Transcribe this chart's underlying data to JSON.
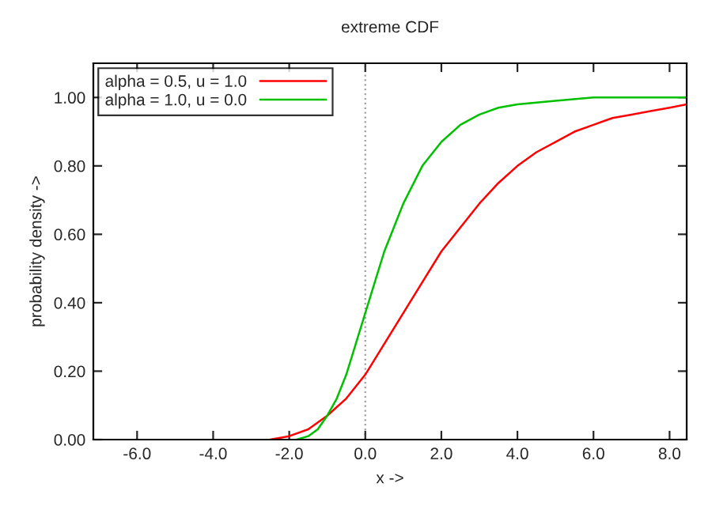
{
  "chart_data": {
    "type": "line",
    "title": "extreme CDF",
    "xlabel": "x ->",
    "ylabel": "probability density ->",
    "xlim": [
      -7.15,
      8.45
    ],
    "ylim": [
      0,
      1.1
    ],
    "xticks": [
      {
        "value": -6,
        "label": "-6.0"
      },
      {
        "value": -4,
        "label": "-4.0"
      },
      {
        "value": -2,
        "label": "-2.0"
      },
      {
        "value": 0,
        "label": "0.0"
      },
      {
        "value": 2,
        "label": "2.0"
      },
      {
        "value": 4,
        "label": "4.0"
      },
      {
        "value": 6,
        "label": "6.0"
      },
      {
        "value": 8,
        "label": "8.0"
      }
    ],
    "yticks": [
      {
        "value": 0,
        "label": "0.00"
      },
      {
        "value": 0.2,
        "label": "0.20"
      },
      {
        "value": 0.4,
        "label": "0.40"
      },
      {
        "value": 0.6,
        "label": "0.60"
      },
      {
        "value": 0.8,
        "label": "0.80"
      },
      {
        "value": 1.0,
        "label": "1.00"
      }
    ],
    "series": [
      {
        "name": "alpha = 0.5, u = 1.0",
        "color": "#ff0000",
        "x": [
          -2.5,
          -2,
          -1.5,
          -1,
          -0.5,
          0,
          0.5,
          1,
          1.5,
          2,
          2.5,
          3,
          3.5,
          4,
          4.5,
          5,
          5.5,
          6,
          6.5,
          7,
          7.5,
          8,
          8.45
        ],
        "values": [
          0.0,
          0.01,
          0.03,
          0.07,
          0.12,
          0.19,
          0.28,
          0.37,
          0.46,
          0.55,
          0.62,
          0.69,
          0.75,
          0.8,
          0.84,
          0.87,
          0.9,
          0.92,
          0.94,
          0.95,
          0.96,
          0.97,
          0.98
        ]
      },
      {
        "name": "alpha = 1.0, u = 0.0",
        "color": "#00c000",
        "x": [
          -1.8,
          -1.5,
          -1.25,
          -1,
          -0.75,
          -0.5,
          -0.25,
          0,
          0.25,
          0.5,
          0.75,
          1,
          1.5,
          2,
          2.5,
          3,
          3.5,
          4,
          5,
          6,
          7,
          8.45
        ],
        "values": [
          0.0,
          0.01,
          0.03,
          0.07,
          0.12,
          0.19,
          0.28,
          0.37,
          0.46,
          0.55,
          0.62,
          0.69,
          0.8,
          0.87,
          0.92,
          0.95,
          0.97,
          0.98,
          0.99,
          1.0,
          1.0,
          1.0
        ]
      }
    ],
    "ref_lines": [
      {
        "axis": "x",
        "value": 0,
        "color": "#a0a0a0",
        "line_style": "dotted"
      }
    ],
    "legend": "top left",
    "grid": false
  }
}
